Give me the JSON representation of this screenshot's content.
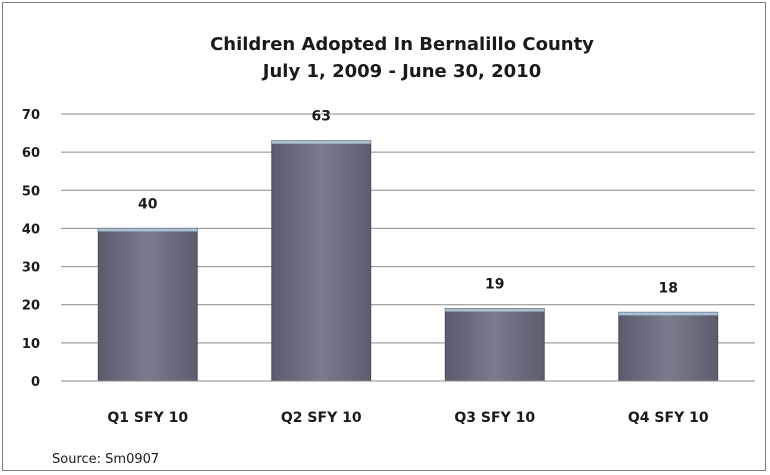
{
  "chart_data": {
    "type": "bar",
    "title": "Children Adopted In Bernalillo County",
    "subtitle": "July 1, 2009 - June 30, 2010",
    "categories": [
      "Q1 SFY 10",
      "Q2 SFY 10",
      "Q3 SFY 10",
      "Q4 SFY 10"
    ],
    "values": [
      40,
      63,
      19,
      18
    ],
    "data_labels": [
      "40",
      "63",
      "19",
      "18"
    ],
    "ylim": [
      0,
      70
    ],
    "yticks": [
      "0",
      "10",
      "20",
      "30",
      "40",
      "50",
      "60",
      "70"
    ],
    "xlabel": "",
    "ylabel": "",
    "grid": true,
    "legend": "none",
    "bar_color": "#6e6f80",
    "source": "Source: Sm0907"
  }
}
